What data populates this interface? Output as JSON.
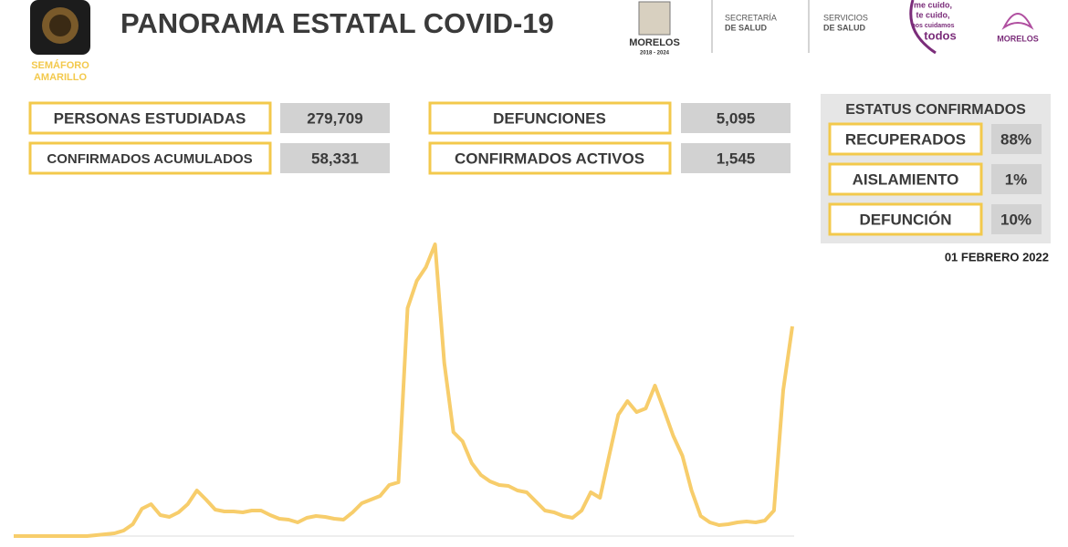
{
  "header": {
    "title": "PANORAMA ESTATAL COVID-19",
    "semaforo": [
      "SEMÁFORO",
      "AMARILLO"
    ],
    "logos": {
      "morelos": "MORELOS",
      "period": "2018 - 2024",
      "secretaria": [
        "SECRETARÍA",
        "DE SALUD"
      ],
      "servicios": [
        "SERVICIOS",
        "DE SALUD"
      ],
      "campaign": [
        "me cuido,",
        "te cuido,",
        "nos cuidamos",
        "todos"
      ],
      "morelos2": "MORELOS"
    }
  },
  "stats": [
    {
      "label": "PERSONAS ESTUDIADAS",
      "value": "279,709"
    },
    {
      "label": "CONFIRMADOS ACUMULADOS",
      "value": "58,331"
    },
    {
      "label": "DEFUNCIONES",
      "value": "5,095"
    },
    {
      "label": "CONFIRMADOS ACTIVOS",
      "value": "1,545"
    }
  ],
  "status": {
    "title": "ESTATUS CONFIRMADOS",
    "items": [
      {
        "label": "RECUPERADOS",
        "value": "88%"
      },
      {
        "label": "AISLAMIENTO",
        "value": "1%"
      },
      {
        "label": "DEFUNCIÓN",
        "value": "10%"
      }
    ]
  },
  "date": "01 FEBRERO 2022",
  "chart_data": {
    "type": "line",
    "color": "#f7cd6b",
    "ylim": [
      0,
      340
    ],
    "values": [
      0,
      0,
      0,
      0,
      0,
      0,
      0,
      0,
      0,
      1,
      2,
      3,
      6,
      13,
      30,
      35,
      23,
      21,
      26,
      35,
      50,
      40,
      29,
      27,
      27,
      26,
      28,
      28,
      23,
      19,
      18,
      15,
      20,
      22,
      21,
      19,
      18,
      26,
      36,
      40,
      44,
      56,
      59,
      250,
      280,
      295,
      320,
      190,
      114,
      104,
      80,
      67,
      60,
      56,
      55,
      50,
      48,
      38,
      28,
      26,
      22,
      20,
      28,
      48,
      42,
      88,
      133,
      148,
      136,
      140,
      165,
      138,
      110,
      88,
      50,
      22,
      15,
      12,
      13,
      15,
      16,
      15,
      17,
      28,
      160,
      230
    ]
  }
}
